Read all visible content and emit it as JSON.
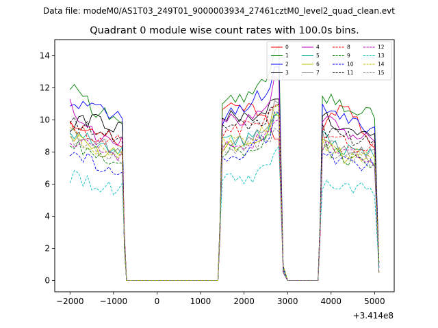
{
  "chart_data": {
    "type": "line",
    "suptitle": "Data file: modeM0/AS1T03_249T01_9000003934_27461cztM0_level2_quad_clean.evt",
    "title": "Quadrant 0 module wise count rates with 100.0s bins.",
    "xlabel": "",
    "ylabel": "",
    "offset_label": "+3.414e8",
    "xlim": [
      -2350,
      5450
    ],
    "ylim": [
      -0.7,
      15.0
    ],
    "xticks": [
      -2000,
      -1000,
      0,
      1000,
      2000,
      3000,
      4000,
      5000
    ],
    "xtick_labels": [
      "−2000",
      "−1000",
      "0",
      "1000",
      "2000",
      "3000",
      "4000",
      "5000"
    ],
    "yticks": [
      0,
      2,
      4,
      6,
      8,
      10,
      12,
      14
    ],
    "ytick_labels": [
      "0",
      "2",
      "4",
      "6",
      "8",
      "10",
      "12",
      "14"
    ],
    "grid": false,
    "legend": {
      "placement": "top-right",
      "columns": 4
    },
    "series": [
      {
        "name": "0",
        "color": "#ff0000",
        "dash": "solid",
        "base": [
          9.8,
          9.2,
          11.0,
          10.9,
          8.8,
          9.6,
          11.2,
          8.5
        ]
      },
      {
        "name": "1",
        "color": "#008000",
        "dash": "solid",
        "base": [
          12.3,
          10.5,
          11.2,
          11.3,
          14.3,
          11.4,
          10.8,
          10.3
        ]
      },
      {
        "name": "2",
        "color": "#0000ff",
        "dash": "solid",
        "base": [
          11.1,
          10.8,
          10.0,
          10.9,
          13.3,
          10.9,
          10.0,
          9.5
        ]
      },
      {
        "name": "3",
        "color": "#000000",
        "dash": "solid",
        "base": [
          9.7,
          10.0,
          10.1,
          10.2,
          11.3,
          10.2,
          9.5,
          8.9
        ]
      },
      {
        "name": "4",
        "color": "#c000c0",
        "dash": "solid",
        "base": [
          10.9,
          9.0,
          9.8,
          10.1,
          12.7,
          10.1,
          9.2,
          8.8
        ]
      },
      {
        "name": "5",
        "color": "#00b0a0",
        "dash": "solid",
        "base": [
          9.3,
          8.6,
          8.8,
          8.7,
          10.3,
          8.9,
          8.2,
          7.9
        ]
      },
      {
        "name": "6",
        "color": "#c0c000",
        "dash": "solid",
        "base": [
          9.0,
          8.2,
          8.4,
          8.5,
          10.5,
          8.8,
          7.6,
          7.5
        ]
      },
      {
        "name": "7",
        "color": "#808080",
        "dash": "solid",
        "base": [
          9.2,
          8.5,
          8.7,
          8.7,
          11.2,
          8.9,
          8.0,
          7.8
        ]
      },
      {
        "name": "8",
        "color": "#ff0000",
        "dash": "dashed",
        "base": [
          9.7,
          9.0,
          8.9,
          9.6,
          10.9,
          9.2,
          8.6,
          8.2
        ]
      },
      {
        "name": "9",
        "color": "#008000",
        "dash": "dashed",
        "base": [
          8.6,
          7.8,
          8.0,
          8.1,
          10.3,
          8.2,
          7.6,
          7.3
        ]
      },
      {
        "name": "10",
        "color": "#0000ff",
        "dash": "dashed",
        "base": [
          8.2,
          7.3,
          7.6,
          7.9,
          10.5,
          8.0,
          7.3,
          7.1
        ]
      },
      {
        "name": "11",
        "color": "#000000",
        "dash": "dashed",
        "base": [
          9.9,
          9.4,
          9.6,
          9.7,
          10.8,
          9.4,
          8.9,
          8.5
        ]
      },
      {
        "name": "12",
        "color": "#c000c0",
        "dash": "dashed",
        "base": [
          8.7,
          8.1,
          8.3,
          8.4,
          9.9,
          8.4,
          7.8,
          7.5
        ]
      },
      {
        "name": "13",
        "color": "#00c0c0",
        "dash": "dashed",
        "base": [
          6.5,
          5.9,
          6.2,
          6.3,
          8.0,
          6.0,
          5.8,
          5.6
        ]
      },
      {
        "name": "14",
        "color": "#c0c000",
        "dash": "dashed",
        "base": [
          9.1,
          8.3,
          8.6,
          8.6,
          10.8,
          8.5,
          7.9,
          7.6
        ]
      },
      {
        "name": "15",
        "color": "#808080",
        "dash": "dashed",
        "base": [
          8.9,
          8.0,
          8.2,
          8.3,
          9.5,
          8.3,
          7.7,
          7.4
        ]
      }
    ],
    "segments": {
      "seg1": {
        "x_start": -2000,
        "x_end": -800,
        "step": 100,
        "drop_x": -750,
        "drop_y": 3.0,
        "zero_x": -700
      },
      "gap1": {
        "x_start": -700,
        "x_end": 1400,
        "value": 0.0
      },
      "seg2": {
        "x_start": 1500,
        "x_end": 2800,
        "step": 100,
        "rise_x": 1450,
        "rise_y": 3.0
      },
      "seg2_drop": {
        "x": 2900,
        "y": 0.5,
        "zero_x": 3000
      },
      "gap2": {
        "x_start": 3000,
        "x_end": 3700,
        "value": 0.0
      },
      "seg3": {
        "x_start": 3800,
        "x_end": 5000,
        "step": 100,
        "rise_x": 3750,
        "rise_y": 3.0,
        "end_x": 5100,
        "end_y": 0.5
      }
    }
  }
}
